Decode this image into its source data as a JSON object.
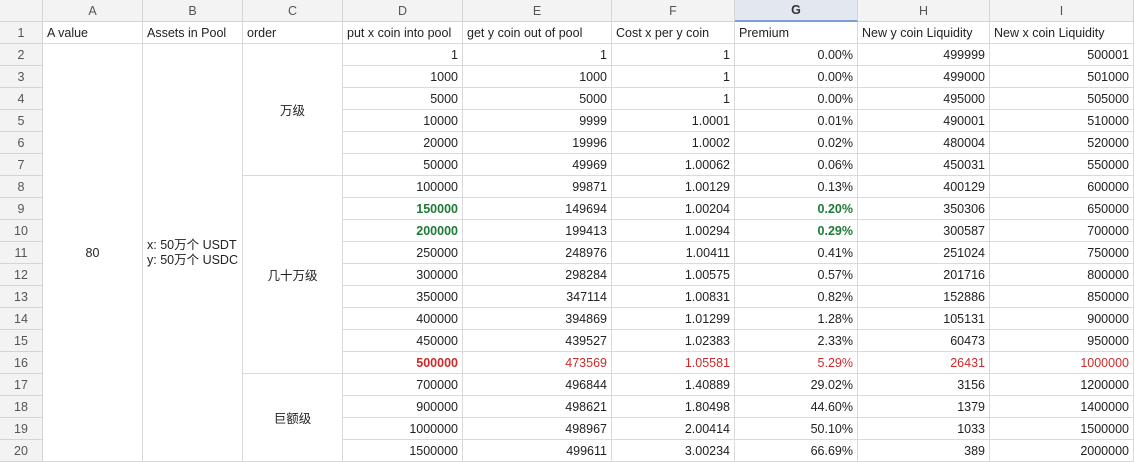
{
  "columns": [
    "A",
    "B",
    "C",
    "D",
    "E",
    "F",
    "G",
    "H",
    "I"
  ],
  "selected_column": "G",
  "header_row": [
    "A value",
    "Assets in Pool",
    "order",
    "put x coin into pool",
    "get y coin out of pool",
    "Cost x per y coin",
    "Premium",
    "New y coin Liquidity",
    "New x coin Liquidity"
  ],
  "merged": {
    "a_value": "80",
    "assets_line1": "x: 50万个 USDT",
    "assets_line2": "y: 50万个 USDC",
    "order_groups": [
      {
        "label": "万级",
        "from_row": 2,
        "to_row": 7
      },
      {
        "label": "几十万级",
        "from_row": 8,
        "to_row": 16
      },
      {
        "label": "巨额级",
        "from_row": 17,
        "to_row": 20
      }
    ]
  },
  "rows": [
    {
      "row": 2,
      "d": "1",
      "e": "1",
      "f": "1",
      "g": "0.00%",
      "h": "499999",
      "i": "500001"
    },
    {
      "row": 3,
      "d": "1000",
      "e": "1000",
      "f": "1",
      "g": "0.00%",
      "h": "499000",
      "i": "501000"
    },
    {
      "row": 4,
      "d": "5000",
      "e": "5000",
      "f": "1",
      "g": "0.00%",
      "h": "495000",
      "i": "505000"
    },
    {
      "row": 5,
      "d": "10000",
      "e": "9999",
      "f": "1.0001",
      "g": "0.01%",
      "h": "490001",
      "i": "510000"
    },
    {
      "row": 6,
      "d": "20000",
      "e": "19996",
      "f": "1.0002",
      "g": "0.02%",
      "h": "480004",
      "i": "520000"
    },
    {
      "row": 7,
      "d": "50000",
      "e": "49969",
      "f": "1.00062",
      "g": "0.06%",
      "h": "450031",
      "i": "550000"
    },
    {
      "row": 8,
      "d": "100000",
      "e": "99871",
      "f": "1.00129",
      "g": "0.13%",
      "h": "400129",
      "i": "600000"
    },
    {
      "row": 9,
      "d": "150000",
      "e": "149694",
      "f": "1.00204",
      "g": "0.20%",
      "h": "350306",
      "i": "650000",
      "style": "green"
    },
    {
      "row": 10,
      "d": "200000",
      "e": "199413",
      "f": "1.00294",
      "g": "0.29%",
      "h": "300587",
      "i": "700000",
      "style": "green"
    },
    {
      "row": 11,
      "d": "250000",
      "e": "248976",
      "f": "1.00411",
      "g": "0.41%",
      "h": "251024",
      "i": "750000"
    },
    {
      "row": 12,
      "d": "300000",
      "e": "298284",
      "f": "1.00575",
      "g": "0.57%",
      "h": "201716",
      "i": "800000"
    },
    {
      "row": 13,
      "d": "350000",
      "e": "347114",
      "f": "1.00831",
      "g": "0.82%",
      "h": "152886",
      "i": "850000"
    },
    {
      "row": 14,
      "d": "400000",
      "e": "394869",
      "f": "1.01299",
      "g": "1.28%",
      "h": "105131",
      "i": "900000"
    },
    {
      "row": 15,
      "d": "450000",
      "e": "439527",
      "f": "1.02383",
      "g": "2.33%",
      "h": "60473",
      "i": "950000"
    },
    {
      "row": 16,
      "d": "500000",
      "e": "473569",
      "f": "1.05581",
      "g": "5.29%",
      "h": "26431",
      "i": "1000000",
      "style": "red"
    },
    {
      "row": 17,
      "d": "700000",
      "e": "496844",
      "f": "1.40889",
      "g": "29.02%",
      "h": "3156",
      "i": "1200000"
    },
    {
      "row": 18,
      "d": "900000",
      "e": "498621",
      "f": "1.80498",
      "g": "44.60%",
      "h": "1379",
      "i": "1400000"
    },
    {
      "row": 19,
      "d": "1000000",
      "e": "498967",
      "f": "2.00414",
      "g": "50.10%",
      "h": "1033",
      "i": "1500000"
    },
    {
      "row": 20,
      "d": "1500000",
      "e": "499611",
      "f": "3.00234",
      "g": "66.69%",
      "h": "389",
      "i": "2000000"
    }
  ],
  "colors": {
    "green": "#1e7b36",
    "red": "#cc2a2a",
    "header_bg": "#f3f3f3",
    "grid_line": "#dadada"
  }
}
